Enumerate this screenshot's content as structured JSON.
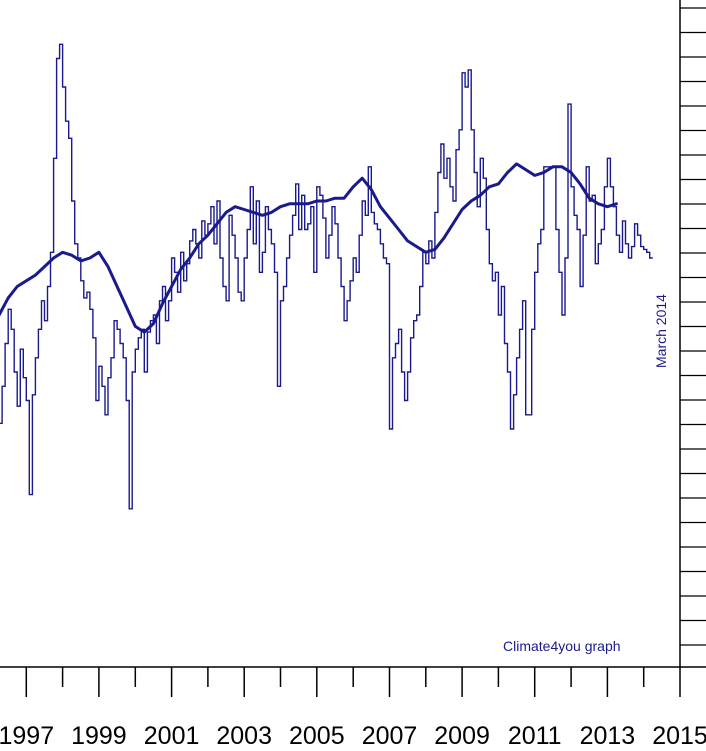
{
  "chart_data": {
    "type": "line",
    "title": "",
    "xlabel": "",
    "ylabel": "",
    "xlim": [
      1996.0,
      2015.0
    ],
    "ylim": [
      -1.0,
      1.0
    ],
    "x_tick_labels": [
      "1997",
      "1999",
      "2001",
      "2003",
      "2005",
      "2007",
      "2009",
      "2011",
      "2013",
      "2015"
    ],
    "annotations": {
      "date_stamp": "March 2014",
      "credit": "Climate4you graph"
    },
    "colors": {
      "series": "#1a1a8c",
      "axis": "#000000",
      "text": "#000000"
    },
    "grid": false,
    "series": [
      {
        "style": "step",
        "data": [
          [
            1996.0,
            -0.1
          ],
          [
            1996.083,
            -0.05
          ],
          [
            1996.167,
            -0.24
          ],
          [
            1996.25,
            -0.38
          ],
          [
            1996.333,
            -0.25
          ],
          [
            1996.417,
            -0.1
          ],
          [
            1996.5,
            0.02
          ],
          [
            1996.583,
            -0.05
          ],
          [
            1996.667,
            -0.2
          ],
          [
            1996.75,
            -0.32
          ],
          [
            1996.833,
            -0.12
          ],
          [
            1996.917,
            -0.22
          ],
          [
            1997.0,
            -0.3
          ],
          [
            1997.083,
            -0.63
          ],
          [
            1997.167,
            -0.28
          ],
          [
            1997.25,
            -0.15
          ],
          [
            1997.333,
            -0.05
          ],
          [
            1997.417,
            0.05
          ],
          [
            1997.5,
            -0.02
          ],
          [
            1997.583,
            0.1
          ],
          [
            1997.667,
            0.22
          ],
          [
            1997.75,
            0.55
          ],
          [
            1997.833,
            0.9
          ],
          [
            1997.917,
            0.95
          ],
          [
            1998.0,
            0.8
          ],
          [
            1998.083,
            0.68
          ],
          [
            1998.167,
            0.62
          ],
          [
            1998.25,
            0.4
          ],
          [
            1998.333,
            0.25
          ],
          [
            1998.417,
            0.2
          ],
          [
            1998.5,
            0.12
          ],
          [
            1998.583,
            0.06
          ],
          [
            1998.667,
            0.08
          ],
          [
            1998.75,
            0.02
          ],
          [
            1998.833,
            -0.08
          ],
          [
            1998.917,
            -0.3
          ],
          [
            1999.0,
            -0.18
          ],
          [
            1999.083,
            -0.25
          ],
          [
            1999.167,
            -0.35
          ],
          [
            1999.25,
            -0.22
          ],
          [
            1999.333,
            -0.15
          ],
          [
            1999.417,
            -0.02
          ],
          [
            1999.5,
            -0.05
          ],
          [
            1999.583,
            -0.1
          ],
          [
            1999.667,
            -0.15
          ],
          [
            1999.75,
            -0.3
          ],
          [
            1999.833,
            -0.68
          ],
          [
            1999.917,
            -0.2
          ],
          [
            2000.0,
            -0.12
          ],
          [
            2000.083,
            -0.08
          ],
          [
            2000.167,
            -0.05
          ],
          [
            2000.25,
            -0.2
          ],
          [
            2000.333,
            -0.06
          ],
          [
            2000.417,
            -0.02
          ],
          [
            2000.5,
            0.0
          ],
          [
            2000.583,
            -0.1
          ],
          [
            2000.667,
            0.05
          ],
          [
            2000.75,
            0.1
          ],
          [
            2000.833,
            -0.02
          ],
          [
            2000.917,
            0.05
          ],
          [
            2001.0,
            0.2
          ],
          [
            2001.083,
            0.15
          ],
          [
            2001.167,
            0.08
          ],
          [
            2001.25,
            0.22
          ],
          [
            2001.333,
            0.12
          ],
          [
            2001.417,
            0.18
          ],
          [
            2001.5,
            0.26
          ],
          [
            2001.583,
            0.3
          ],
          [
            2001.667,
            0.25
          ],
          [
            2001.75,
            0.2
          ],
          [
            2001.833,
            0.33
          ],
          [
            2001.917,
            0.28
          ],
          [
            2002.0,
            0.32
          ],
          [
            2002.083,
            0.38
          ],
          [
            2002.167,
            0.25
          ],
          [
            2002.25,
            0.4
          ],
          [
            2002.333,
            0.2
          ],
          [
            2002.417,
            0.1
          ],
          [
            2002.5,
            0.05
          ],
          [
            2002.583,
            0.35
          ],
          [
            2002.667,
            0.28
          ],
          [
            2002.75,
            0.2
          ],
          [
            2002.833,
            0.08
          ],
          [
            2002.917,
            0.05
          ],
          [
            2003.0,
            0.2
          ],
          [
            2003.083,
            0.3
          ],
          [
            2003.167,
            0.45
          ],
          [
            2003.25,
            0.25
          ],
          [
            2003.333,
            0.4
          ],
          [
            2003.417,
            0.15
          ],
          [
            2003.5,
            0.22
          ],
          [
            2003.583,
            0.38
          ],
          [
            2003.667,
            0.3
          ],
          [
            2003.75,
            0.25
          ],
          [
            2003.833,
            0.15
          ],
          [
            2003.917,
            -0.25
          ],
          [
            2004.0,
            0.05
          ],
          [
            2004.083,
            0.1
          ],
          [
            2004.167,
            0.2
          ],
          [
            2004.25,
            0.28
          ],
          [
            2004.333,
            0.35
          ],
          [
            2004.417,
            0.46
          ],
          [
            2004.5,
            0.3
          ],
          [
            2004.583,
            0.42
          ],
          [
            2004.667,
            0.3
          ],
          [
            2004.75,
            0.32
          ],
          [
            2004.833,
            0.38
          ],
          [
            2004.917,
            0.15
          ],
          [
            2005.0,
            0.45
          ],
          [
            2005.083,
            0.42
          ],
          [
            2005.167,
            0.34
          ],
          [
            2005.25,
            0.2
          ],
          [
            2005.333,
            0.28
          ],
          [
            2005.417,
            0.38
          ],
          [
            2005.5,
            0.32
          ],
          [
            2005.583,
            0.2
          ],
          [
            2005.667,
            0.1
          ],
          [
            2005.75,
            -0.02
          ],
          [
            2005.833,
            0.05
          ],
          [
            2005.917,
            0.12
          ],
          [
            2006.0,
            0.2
          ],
          [
            2006.083,
            0.15
          ],
          [
            2006.167,
            0.28
          ],
          [
            2006.25,
            0.4
          ],
          [
            2006.333,
            0.35
          ],
          [
            2006.417,
            0.52
          ],
          [
            2006.5,
            0.36
          ],
          [
            2006.583,
            0.32
          ],
          [
            2006.667,
            0.3
          ],
          [
            2006.75,
            0.25
          ],
          [
            2006.833,
            0.2
          ],
          [
            2006.917,
            0.18
          ],
          [
            2007.0,
            -0.4
          ],
          [
            2007.083,
            -0.15
          ],
          [
            2007.167,
            -0.1
          ],
          [
            2007.25,
            -0.05
          ],
          [
            2007.333,
            -0.2
          ],
          [
            2007.417,
            -0.3
          ],
          [
            2007.5,
            -0.2
          ],
          [
            2007.583,
            -0.08
          ],
          [
            2007.667,
            -0.02
          ],
          [
            2007.75,
            0.0
          ],
          [
            2007.833,
            0.1
          ],
          [
            2007.917,
            0.22
          ],
          [
            2008.0,
            0.18
          ],
          [
            2008.083,
            0.26
          ],
          [
            2008.167,
            0.2
          ],
          [
            2008.25,
            0.36
          ],
          [
            2008.333,
            0.5
          ],
          [
            2008.417,
            0.6
          ],
          [
            2008.5,
            0.48
          ],
          [
            2008.583,
            0.55
          ],
          [
            2008.667,
            0.45
          ],
          [
            2008.75,
            0.4
          ],
          [
            2008.833,
            0.58
          ],
          [
            2008.917,
            0.65
          ],
          [
            2009.0,
            0.85
          ],
          [
            2009.083,
            0.8
          ],
          [
            2009.167,
            0.86
          ],
          [
            2009.25,
            0.65
          ],
          [
            2009.333,
            0.5
          ],
          [
            2009.417,
            0.38
          ],
          [
            2009.5,
            0.55
          ],
          [
            2009.583,
            0.48
          ],
          [
            2009.667,
            0.3
          ],
          [
            2009.75,
            0.18
          ],
          [
            2009.833,
            0.12
          ],
          [
            2009.917,
            0.15
          ],
          [
            2010.0,
            0.0
          ],
          [
            2010.083,
            0.1
          ],
          [
            2010.167,
            -0.1
          ],
          [
            2010.25,
            -0.2
          ],
          [
            2010.333,
            -0.4
          ],
          [
            2010.417,
            -0.28
          ],
          [
            2010.5,
            -0.15
          ],
          [
            2010.583,
            -0.05
          ],
          [
            2010.667,
            0.05
          ],
          [
            2010.75,
            -0.35
          ],
          [
            2010.833,
            -0.35
          ],
          [
            2010.917,
            -0.05
          ],
          [
            2011.0,
            0.15
          ],
          [
            2011.083,
            0.25
          ],
          [
            2011.167,
            0.3
          ],
          [
            2011.25,
            0.52
          ],
          [
            2011.333,
            0.52
          ],
          [
            2011.417,
            0.52
          ],
          [
            2011.5,
            0.52
          ],
          [
            2011.583,
            0.3
          ],
          [
            2011.667,
            0.15
          ],
          [
            2011.75,
            0.0
          ],
          [
            2011.833,
            0.2
          ],
          [
            2011.917,
            0.74
          ],
          [
            2012.0,
            0.45
          ],
          [
            2012.083,
            0.35
          ],
          [
            2012.167,
            0.3
          ],
          [
            2012.25,
            0.1
          ],
          [
            2012.333,
            0.28
          ],
          [
            2012.417,
            0.52
          ],
          [
            2012.5,
            0.4
          ],
          [
            2012.583,
            0.42
          ],
          [
            2012.667,
            0.18
          ],
          [
            2012.75,
            0.25
          ],
          [
            2012.833,
            0.3
          ],
          [
            2012.917,
            0.45
          ],
          [
            2013.0,
            0.55
          ],
          [
            2013.083,
            0.45
          ],
          [
            2013.167,
            0.38
          ],
          [
            2013.25,
            0.28
          ],
          [
            2013.333,
            0.22
          ],
          [
            2013.417,
            0.33
          ],
          [
            2013.5,
            0.25
          ],
          [
            2013.583,
            0.2
          ],
          [
            2013.667,
            0.24
          ],
          [
            2013.75,
            0.32
          ],
          [
            2013.833,
            0.28
          ],
          [
            2013.917,
            0.24
          ],
          [
            2014.0,
            0.23
          ],
          [
            2014.083,
            0.22
          ],
          [
            2014.167,
            0.2
          ]
        ]
      },
      {
        "style": "smooth",
        "data": [
          [
            1996.0,
            -0.05
          ],
          [
            1996.25,
            0.0
          ],
          [
            1996.5,
            0.06
          ],
          [
            1996.75,
            0.1
          ],
          [
            1997.0,
            0.12
          ],
          [
            1997.25,
            0.14
          ],
          [
            1997.5,
            0.17
          ],
          [
            1997.75,
            0.2
          ],
          [
            1998.0,
            0.22
          ],
          [
            1998.25,
            0.21
          ],
          [
            1998.5,
            0.19
          ],
          [
            1998.75,
            0.2
          ],
          [
            1999.0,
            0.22
          ],
          [
            1999.25,
            0.17
          ],
          [
            1999.5,
            0.1
          ],
          [
            1999.75,
            0.03
          ],
          [
            2000.0,
            -0.04
          ],
          [
            2000.25,
            -0.06
          ],
          [
            2000.5,
            -0.03
          ],
          [
            2000.75,
            0.04
          ],
          [
            2001.0,
            0.1
          ],
          [
            2001.25,
            0.16
          ],
          [
            2001.5,
            0.2
          ],
          [
            2001.75,
            0.25
          ],
          [
            2002.0,
            0.28
          ],
          [
            2002.25,
            0.32
          ],
          [
            2002.5,
            0.36
          ],
          [
            2002.75,
            0.38
          ],
          [
            2003.0,
            0.37
          ],
          [
            2003.25,
            0.36
          ],
          [
            2003.5,
            0.35
          ],
          [
            2003.75,
            0.36
          ],
          [
            2004.0,
            0.38
          ],
          [
            2004.25,
            0.39
          ],
          [
            2004.5,
            0.39
          ],
          [
            2004.75,
            0.39
          ],
          [
            2005.0,
            0.4
          ],
          [
            2005.25,
            0.4
          ],
          [
            2005.5,
            0.41
          ],
          [
            2005.75,
            0.41
          ],
          [
            2006.0,
            0.45
          ],
          [
            2006.25,
            0.48
          ],
          [
            2006.5,
            0.44
          ],
          [
            2006.75,
            0.38
          ],
          [
            2007.0,
            0.34
          ],
          [
            2007.25,
            0.3
          ],
          [
            2007.5,
            0.26
          ],
          [
            2007.75,
            0.24
          ],
          [
            2008.0,
            0.22
          ],
          [
            2008.25,
            0.23
          ],
          [
            2008.5,
            0.27
          ],
          [
            2008.75,
            0.32
          ],
          [
            2009.0,
            0.37
          ],
          [
            2009.25,
            0.4
          ],
          [
            2009.5,
            0.42
          ],
          [
            2009.75,
            0.45
          ],
          [
            2010.0,
            0.46
          ],
          [
            2010.25,
            0.5
          ],
          [
            2010.5,
            0.53
          ],
          [
            2010.75,
            0.51
          ],
          [
            2011.0,
            0.49
          ],
          [
            2011.25,
            0.5
          ],
          [
            2011.5,
            0.52
          ],
          [
            2011.75,
            0.52
          ],
          [
            2012.0,
            0.5
          ],
          [
            2012.25,
            0.46
          ],
          [
            2012.5,
            0.41
          ],
          [
            2012.75,
            0.39
          ],
          [
            2013.0,
            0.38
          ],
          [
            2013.25,
            0.39
          ]
        ]
      }
    ]
  }
}
